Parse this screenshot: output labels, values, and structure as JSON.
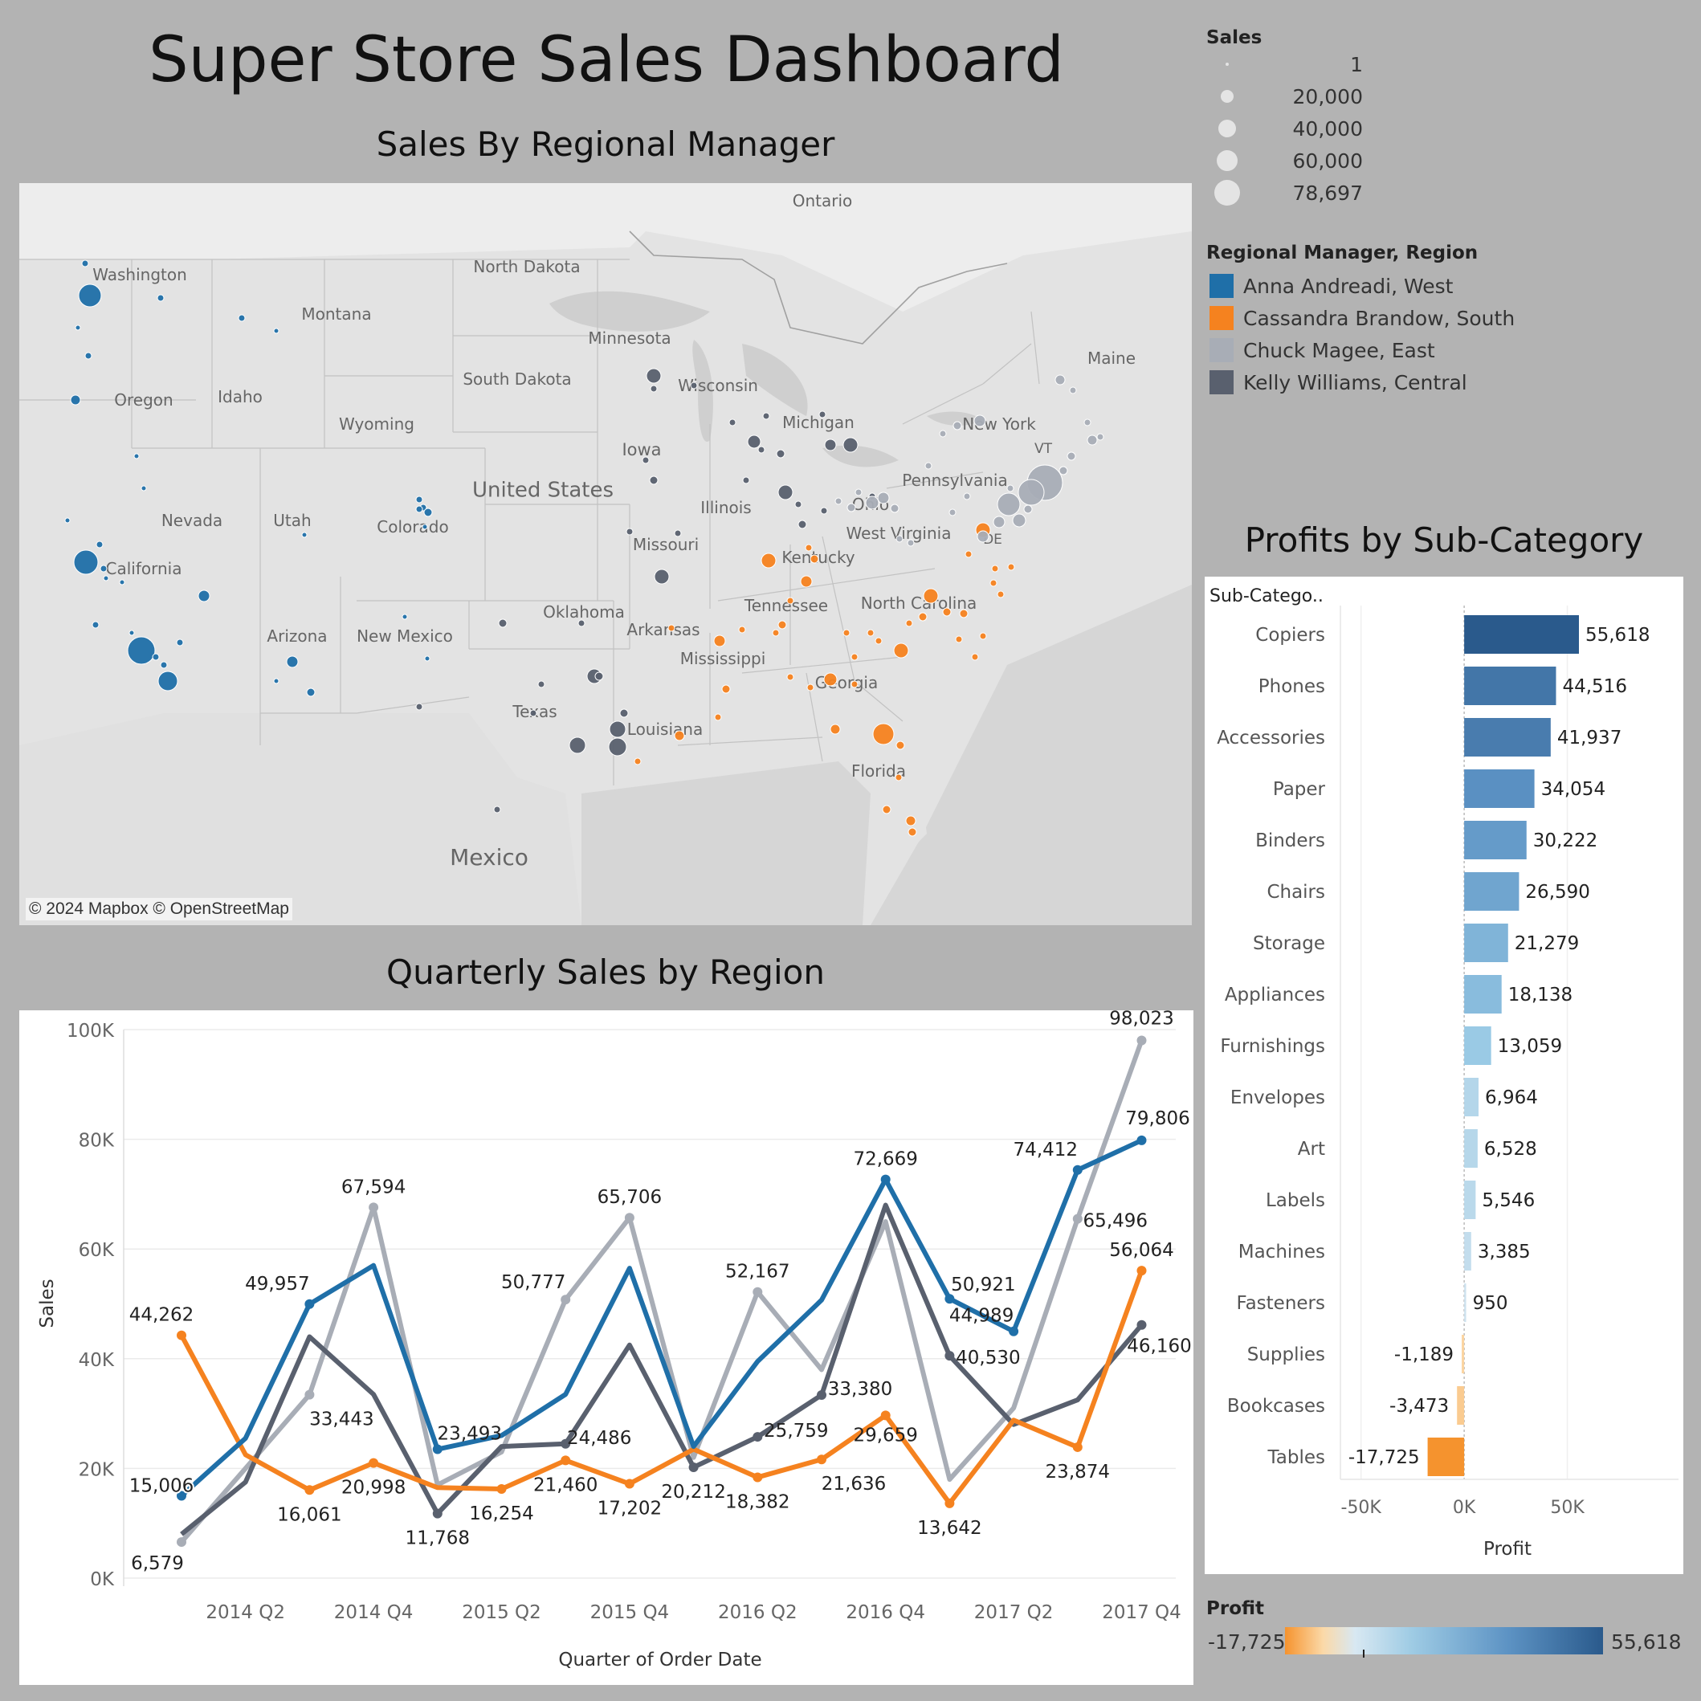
{
  "dashboard": {
    "title": "Super Store Sales Dashboard"
  },
  "colors": {
    "west": "#1f6fa8",
    "south": "#f5821f",
    "east": "#a8adb6",
    "central": "#59606e",
    "background": "#b3b3b3"
  },
  "size_legend": {
    "title": "Sales",
    "items": [
      "1",
      "20,000",
      "40,000",
      "60,000",
      "78,697"
    ]
  },
  "color_legend": {
    "title": "Regional Manager, Region",
    "items": [
      {
        "label": "Anna Andreadi, West",
        "color": "#1f6fa8"
      },
      {
        "label": "Cassandra Brandow, South",
        "color": "#f5821f"
      },
      {
        "label": "Chuck Magee, East",
        "color": "#a8adb6"
      },
      {
        "label": "Kelly Williams, Central",
        "color": "#59606e"
      }
    ]
  },
  "map": {
    "title": "Sales By Regional Manager",
    "attribution": "© 2024 Mapbox © OpenStreetMap",
    "labels": [
      "Ontario",
      "North Dakota",
      "Minnesota",
      "Maine",
      "Washington",
      "Montana",
      "Oregon",
      "Idaho",
      "South Dakota",
      "Wisconsin",
      "Michigan",
      "Wyoming",
      "Iowa",
      "New York",
      "Pennsylvania",
      "Nevada",
      "Utah",
      "Colorado",
      "United States",
      "Illinois",
      "Ohio",
      "California",
      "Missouri",
      "Kentucky",
      "West Virginia",
      "Tennessee",
      "North Carolina",
      "Oklahoma",
      "Arkansas",
      "Arizona",
      "New Mexico",
      "Mississippi",
      "Georgia",
      "Texas",
      "Louisiana",
      "Florida",
      "Mexico",
      "VT",
      "DE"
    ]
  },
  "line_chart_title": "Quarterly Sales by Region",
  "bar_chart_title": "Profits by Sub-Category",
  "profit_legend": {
    "title": "Profit",
    "min_label": "-17,725",
    "max_label": "55,618"
  },
  "chart_data": [
    {
      "type": "line",
      "title": "Quarterly Sales by Region",
      "xlabel": "Quarter of Order Date",
      "ylabel": "Sales",
      "ylim": [
        0,
        100000
      ],
      "yticks": [
        "0K",
        "20K",
        "40K",
        "60K",
        "80K",
        "100K"
      ],
      "x": [
        "2014 Q1",
        "2014 Q2",
        "2014 Q3",
        "2014 Q4",
        "2015 Q1",
        "2015 Q2",
        "2015 Q3",
        "2015 Q4",
        "2016 Q1",
        "2016 Q2",
        "2016 Q3",
        "2016 Q4",
        "2017 Q1",
        "2017 Q2",
        "2017 Q3",
        "2017 Q4"
      ],
      "xtick_labels": [
        "2014 Q2",
        "2014 Q4",
        "2015 Q2",
        "2015 Q4",
        "2016 Q2",
        "2016 Q4",
        "2017 Q2",
        "2017 Q4"
      ],
      "grid": true,
      "series": [
        {
          "name": "Anna Andreadi, West",
          "color": "#1f6fa8",
          "values": [
            15006,
            25500,
            49957,
            57000,
            23493,
            26000,
            33500,
            56500,
            24000,
            39500,
            50700,
            72669,
            50921,
            44989,
            74412,
            79806
          ]
        },
        {
          "name": "Cassandra Brandow, South",
          "color": "#f5821f",
          "values": [
            44262,
            22500,
            16061,
            20998,
            16500,
            16254,
            21460,
            17202,
            23500,
            18382,
            21636,
            29659,
            13642,
            28800,
            23874,
            56064
          ]
        },
        {
          "name": "Chuck Magee, East",
          "color": "#a8adb6",
          "values": [
            6579,
            20000,
            33443,
            67594,
            17000,
            23000,
            50777,
            65706,
            22000,
            52167,
            38000,
            65000,
            18000,
            31000,
            65496,
            98023
          ]
        },
        {
          "name": "Kelly Williams, Central",
          "color": "#59606e",
          "values": [
            8000,
            17500,
            44000,
            33500,
            11768,
            24000,
            24486,
            42500,
            20212,
            25759,
            33380,
            68000,
            40530,
            28000,
            32500,
            46160
          ]
        }
      ],
      "data_labels": [
        {
          "series": 0,
          "index": 0,
          "text": "15,006",
          "dx": -25,
          "dy": -5,
          "anchor": "middle",
          "halo": true
        },
        {
          "series": 0,
          "index": 2,
          "text": "49,957",
          "dx": -40,
          "dy": -18,
          "anchor": "middle"
        },
        {
          "series": 0,
          "index": 4,
          "text": "23,493",
          "dx": 40,
          "dy": -12,
          "anchor": "middle"
        },
        {
          "series": 0,
          "index": 11,
          "text": "72,669",
          "dx": 0,
          "dy": -18,
          "anchor": "middle"
        },
        {
          "series": 0,
          "index": 12,
          "text": "50,921",
          "dx": 42,
          "dy": -10,
          "anchor": "middle"
        },
        {
          "series": 0,
          "index": 13,
          "text": "44,989",
          "dx": -40,
          "dy": -12,
          "anchor": "middle"
        },
        {
          "series": 0,
          "index": 14,
          "text": "74,412",
          "dx": -40,
          "dy": -18,
          "anchor": "middle"
        },
        {
          "series": 0,
          "index": 15,
          "text": "79,806",
          "dx": 20,
          "dy": -20,
          "anchor": "middle"
        },
        {
          "series": 1,
          "index": 0,
          "text": "44,262",
          "dx": -25,
          "dy": -18,
          "anchor": "middle"
        },
        {
          "series": 1,
          "index": 2,
          "text": "16,061",
          "dx": 0,
          "dy": 38,
          "anchor": "middle"
        },
        {
          "series": 1,
          "index": 3,
          "text": "20,998",
          "dx": 0,
          "dy": 38,
          "anchor": "middle"
        },
        {
          "series": 1,
          "index": 5,
          "text": "16,254",
          "dx": 0,
          "dy": 38,
          "anchor": "middle"
        },
        {
          "series": 1,
          "index": 6,
          "text": "21,460",
          "dx": 0,
          "dy": 38,
          "anchor": "middle"
        },
        {
          "series": 1,
          "index": 7,
          "text": "17,202",
          "dx": 0,
          "dy": 38,
          "anchor": "middle"
        },
        {
          "series": 1,
          "index": 9,
          "text": "18,382",
          "dx": 0,
          "dy": 38,
          "anchor": "middle"
        },
        {
          "series": 1,
          "index": 10,
          "text": "21,636",
          "dx": 40,
          "dy": 38,
          "anchor": "middle"
        },
        {
          "series": 1,
          "index": 11,
          "text": "29,659",
          "dx": 0,
          "dy": 32,
          "anchor": "middle"
        },
        {
          "series": 1,
          "index": 12,
          "text": "13,642",
          "dx": 0,
          "dy": 38,
          "anchor": "middle"
        },
        {
          "series": 1,
          "index": 14,
          "text": "23,874",
          "dx": 0,
          "dy": 38,
          "anchor": "middle"
        },
        {
          "series": 1,
          "index": 15,
          "text": "56,064",
          "dx": 0,
          "dy": -18,
          "anchor": "middle"
        },
        {
          "series": 2,
          "index": 0,
          "text": "6,579",
          "dx": -30,
          "dy": 34,
          "anchor": "middle"
        },
        {
          "series": 2,
          "index": 2,
          "text": "33,443",
          "dx": 40,
          "dy": 38,
          "anchor": "middle"
        },
        {
          "series": 2,
          "index": 3,
          "text": "67,594",
          "dx": 0,
          "dy": -18,
          "anchor": "middle"
        },
        {
          "series": 2,
          "index": 6,
          "text": "50,777",
          "dx": -40,
          "dy": -14,
          "anchor": "middle"
        },
        {
          "series": 2,
          "index": 7,
          "text": "65,706",
          "dx": 0,
          "dy": -18,
          "anchor": "middle"
        },
        {
          "series": 2,
          "index": 9,
          "text": "52,167",
          "dx": 0,
          "dy": -18,
          "anchor": "middle"
        },
        {
          "series": 2,
          "index": 14,
          "text": "65,496",
          "dx": 47,
          "dy": 10,
          "anchor": "middle"
        },
        {
          "series": 2,
          "index": 15,
          "text": "98,023",
          "dx": 0,
          "dy": -20,
          "anchor": "middle"
        },
        {
          "series": 3,
          "index": 4,
          "text": "11,768",
          "dx": 0,
          "dy": 38,
          "anchor": "middle"
        },
        {
          "series": 3,
          "index": 6,
          "text": "24,486",
          "dx": 42,
          "dy": 0,
          "anchor": "middle"
        },
        {
          "series": 3,
          "index": 8,
          "text": "20,212",
          "dx": 0,
          "dy": 38,
          "anchor": "middle"
        },
        {
          "series": 3,
          "index": 9,
          "text": "25,759",
          "dx": 48,
          "dy": 0,
          "anchor": "middle"
        },
        {
          "series": 3,
          "index": 10,
          "text": "33,380",
          "dx": 48,
          "dy": 0,
          "anchor": "middle"
        },
        {
          "series": 3,
          "index": 12,
          "text": "40,530",
          "dx": 48,
          "dy": 10,
          "anchor": "middle"
        },
        {
          "series": 3,
          "index": 15,
          "text": "46,160",
          "dx": 22,
          "dy": 34,
          "anchor": "middle"
        }
      ]
    },
    {
      "type": "bar",
      "title": "Profits by Sub-Category",
      "orientation": "horizontal",
      "row_header": "Sub-Catego..",
      "xlabel": "Profit",
      "xlim": [
        -60000,
        100000
      ],
      "xticks": [
        -50000,
        0,
        50000
      ],
      "xtick_labels": [
        "-50K",
        "0K",
        "50K"
      ],
      "categories": [
        "Copiers",
        "Phones",
        "Accessories",
        "Paper",
        "Binders",
        "Chairs",
        "Storage",
        "Appliances",
        "Furnishings",
        "Envelopes",
        "Art",
        "Labels",
        "Machines",
        "Fasteners",
        "Supplies",
        "Bookcases",
        "Tables"
      ],
      "values": [
        55618,
        44516,
        41937,
        34054,
        30222,
        26590,
        21279,
        18138,
        13059,
        6964,
        6528,
        5546,
        3385,
        950,
        -1189,
        -3473,
        -17725
      ],
      "value_labels": [
        "55,618",
        "44,516",
        "41,937",
        "34,054",
        "30,222",
        "26,590",
        "21,279",
        "18,138",
        "13,059",
        "6,964",
        "6,528",
        "5,546",
        "3,385",
        "950",
        "-1,189",
        "-3,473",
        "-17,725"
      ]
    }
  ]
}
